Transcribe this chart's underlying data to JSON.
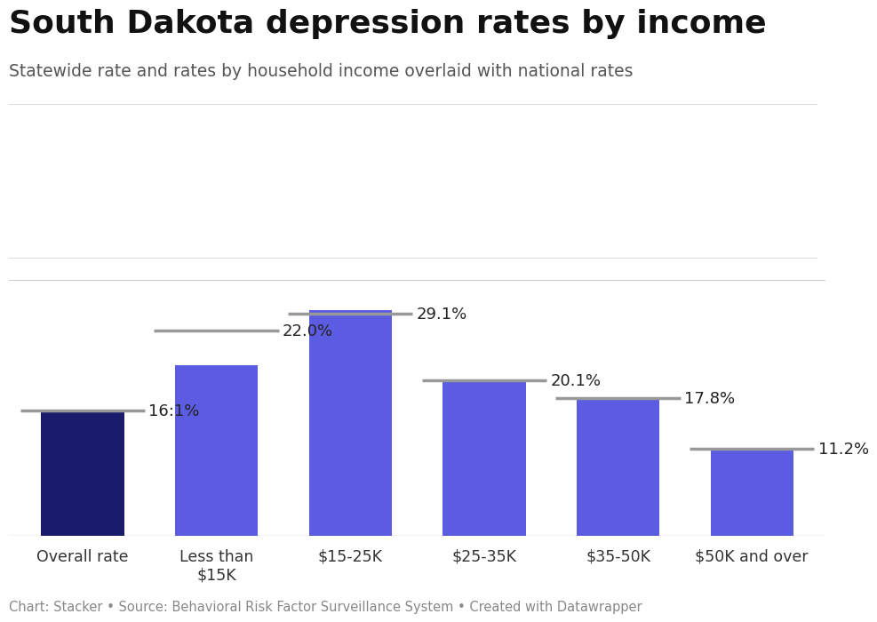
{
  "title": "South Dakota depression rates by income",
  "subtitle": "Statewide rate and rates by household income overlaid with national rates",
  "footer": "Chart: Stacker • Source: Behavioral Risk Factor Surveillance System • Created with Datawrapper",
  "categories": [
    "Overall rate",
    "Less than\n$15K",
    "$15-25K",
    "$25-35K",
    "$35-50K",
    "$50K and over"
  ],
  "values": [
    16.1,
    22.0,
    29.1,
    20.1,
    17.8,
    11.2
  ],
  "national_rates": [
    16.1,
    26.5,
    28.6,
    20.1,
    17.8,
    11.2
  ],
  "bar_colors": [
    "#1b1b6b",
    "#5b5ce2",
    "#5b5ce2",
    "#5b5ce2",
    "#5b5ce2",
    "#5b5ce2"
  ],
  "national_line_color": "#999999",
  "value_labels": [
    "16:1%",
    "22.0%",
    "29.1%",
    "20.1%",
    "17.8%",
    "11.2%"
  ],
  "background_color": "#ffffff",
  "ylim": [
    0,
    33
  ],
  "bar_width": 0.62,
  "title_fontsize": 26,
  "subtitle_fontsize": 13.5,
  "footer_fontsize": 10.5,
  "label_fontsize": 13
}
